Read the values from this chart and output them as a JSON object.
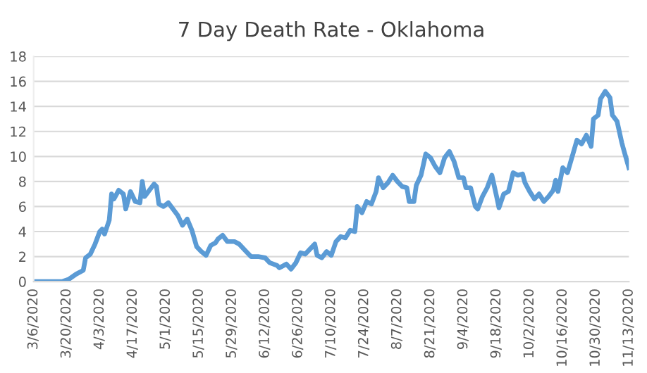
{
  "chart_data": {
    "type": "line",
    "title": "7 Day Death Rate - Oklahoma",
    "x": [
      "2020-03-06",
      "2020-03-18",
      "2020-03-21",
      "2020-03-24",
      "2020-03-27",
      "2020-03-28",
      "2020-03-30",
      "2020-04-01",
      "2020-04-03",
      "2020-04-04",
      "2020-04-05",
      "2020-04-07",
      "2020-04-08",
      "2020-04-09",
      "2020-04-11",
      "2020-04-13",
      "2020-04-14",
      "2020-04-16",
      "2020-04-18",
      "2020-04-20",
      "2020-04-21",
      "2020-04-22",
      "2020-04-24",
      "2020-04-26",
      "2020-04-27",
      "2020-04-28",
      "2020-04-30",
      "2020-05-02",
      "2020-05-04",
      "2020-05-06",
      "2020-05-08",
      "2020-05-10",
      "2020-05-12",
      "2020-05-14",
      "2020-05-16",
      "2020-05-18",
      "2020-05-20",
      "2020-05-22",
      "2020-05-23",
      "2020-05-25",
      "2020-05-27",
      "2020-05-30",
      "2020-06-01",
      "2020-06-04",
      "2020-06-06",
      "2020-06-09",
      "2020-06-12",
      "2020-06-14",
      "2020-06-17",
      "2020-06-18",
      "2020-06-21",
      "2020-06-23",
      "2020-06-25",
      "2020-06-27",
      "2020-06-29",
      "2020-07-01",
      "2020-07-03",
      "2020-07-04",
      "2020-07-06",
      "2020-07-08",
      "2020-07-10",
      "2020-07-12",
      "2020-07-14",
      "2020-07-16",
      "2020-07-18",
      "2020-07-20",
      "2020-07-21",
      "2020-07-23",
      "2020-07-25",
      "2020-07-27",
      "2020-07-29",
      "2020-07-30",
      "2020-08-01",
      "2020-08-03",
      "2020-08-05",
      "2020-08-07",
      "2020-08-09",
      "2020-08-11",
      "2020-08-12",
      "2020-08-14",
      "2020-08-15",
      "2020-08-17",
      "2020-08-19",
      "2020-08-21",
      "2020-08-23",
      "2020-08-25",
      "2020-08-27",
      "2020-08-29",
      "2020-08-31",
      "2020-09-02",
      "2020-09-04",
      "2020-09-05",
      "2020-09-07",
      "2020-09-09",
      "2020-09-10",
      "2020-09-12",
      "2020-09-14",
      "2020-09-16",
      "2020-09-18",
      "2020-09-19",
      "2020-09-21",
      "2020-09-23",
      "2020-09-25",
      "2020-09-27",
      "2020-09-29",
      "2020-09-30",
      "2020-10-02",
      "2020-10-04",
      "2020-10-06",
      "2020-10-08",
      "2020-10-10",
      "2020-10-12",
      "2020-10-13",
      "2020-10-14",
      "2020-10-16",
      "2020-10-18",
      "2020-10-20",
      "2020-10-22",
      "2020-10-24",
      "2020-10-26",
      "2020-10-28",
      "2020-10-29",
      "2020-10-31",
      "2020-11-01",
      "2020-11-03",
      "2020-11-05",
      "2020-11-06",
      "2020-11-08",
      "2020-11-10",
      "2020-11-11",
      "2020-11-13"
    ],
    "series": [
      {
        "color": "#5b9bd5",
        "values": [
          0,
          0,
          0.2,
          0.6,
          0.9,
          1.9,
          2.2,
          3.0,
          4.0,
          4.2,
          3.8,
          4.9,
          7.0,
          6.6,
          7.3,
          7.0,
          5.8,
          7.2,
          6.4,
          6.3,
          8.0,
          6.8,
          7.3,
          7.8,
          7.6,
          6.2,
          6.0,
          6.3,
          5.8,
          5.3,
          4.5,
          5.0,
          4.1,
          2.8,
          2.4,
          2.1,
          2.9,
          3.1,
          3.4,
          3.7,
          3.2,
          3.2,
          3.0,
          2.4,
          2.0,
          2.0,
          1.9,
          1.5,
          1.3,
          1.1,
          1.4,
          1.0,
          1.5,
          2.3,
          2.2,
          2.6,
          3.0,
          2.1,
          1.9,
          2.4,
          2.1,
          3.2,
          3.6,
          3.5,
          4.1,
          4.0,
          6.0,
          5.5,
          6.4,
          6.2,
          7.2,
          8.3,
          7.5,
          7.9,
          8.5,
          8.0,
          7.6,
          7.5,
          6.4,
          6.4,
          7.7,
          8.5,
          10.2,
          9.9,
          9.2,
          8.7,
          9.9,
          10.4,
          9.6,
          8.3,
          8.3,
          7.5,
          7.5,
          6.0,
          5.8,
          6.8,
          7.5,
          8.5,
          6.8,
          5.9,
          7.0,
          7.2,
          8.7,
          8.5,
          8.6,
          7.9,
          7.2,
          6.6,
          7.0,
          6.4,
          6.8,
          7.3,
          8.1,
          7.2,
          9.1,
          8.7,
          10.0,
          11.3,
          11.0,
          11.7,
          10.8,
          13.0,
          13.3,
          14.6,
          15.2,
          14.7,
          13.3,
          12.8,
          11.1,
          10.4,
          9.1
        ]
      }
    ],
    "xlim": [
      "2020-03-06",
      "2020-11-13"
    ],
    "xticks": [
      {
        "value": "2020-03-06",
        "label": "3/6/2020"
      },
      {
        "value": "2020-03-20",
        "label": "3/20/2020"
      },
      {
        "value": "2020-04-03",
        "label": "4/3/2020"
      },
      {
        "value": "2020-04-17",
        "label": "4/17/2020"
      },
      {
        "value": "2020-05-01",
        "label": "5/1/2020"
      },
      {
        "value": "2020-05-15",
        "label": "5/15/2020"
      },
      {
        "value": "2020-05-29",
        "label": "5/29/2020"
      },
      {
        "value": "2020-06-12",
        "label": "6/12/2020"
      },
      {
        "value": "2020-06-26",
        "label": "6/26/2020"
      },
      {
        "value": "2020-07-10",
        "label": "7/10/2020"
      },
      {
        "value": "2020-07-24",
        "label": "7/24/2020"
      },
      {
        "value": "2020-08-07",
        "label": "8/7/2020"
      },
      {
        "value": "2020-08-21",
        "label": "8/21/2020"
      },
      {
        "value": "2020-09-04",
        "label": "9/4/2020"
      },
      {
        "value": "2020-09-18",
        "label": "9/18/2020"
      },
      {
        "value": "2020-10-02",
        "label": "10/2/2020"
      },
      {
        "value": "2020-10-16",
        "label": "10/16/2020"
      },
      {
        "value": "2020-10-30",
        "label": "10/30/2020"
      },
      {
        "value": "2020-11-13",
        "label": "11/13/2020"
      }
    ],
    "ylim": [
      0,
      18
    ],
    "yticks": [
      0,
      2,
      4,
      6,
      8,
      10,
      12,
      14,
      16,
      18
    ],
    "grid": "y",
    "legend": false,
    "marker": "none",
    "line_style": "solid"
  }
}
